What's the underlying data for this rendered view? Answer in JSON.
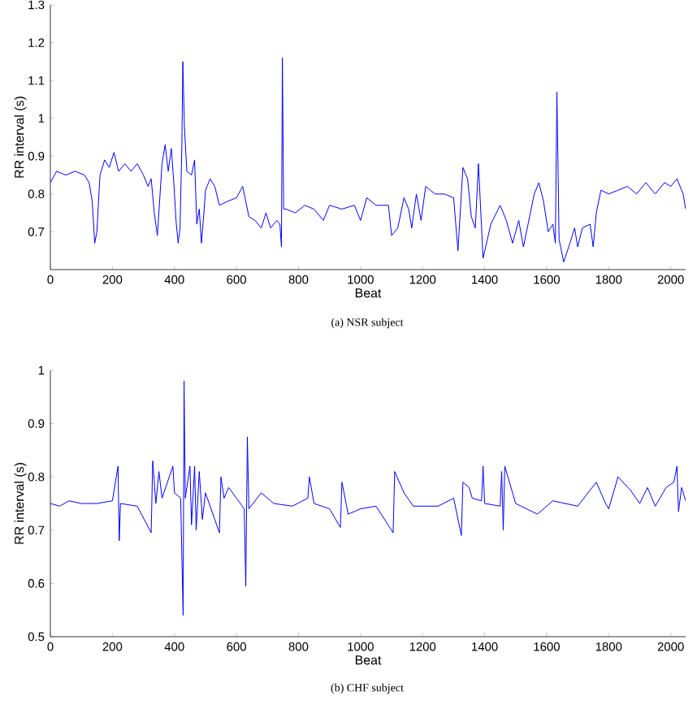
{
  "chart_data": [
    {
      "type": "line",
      "xlabel": "Beat",
      "ylabel": "RR interval (s)",
      "color": "#0000ff",
      "xlim": [
        0,
        2048
      ],
      "ylim": [
        0.6,
        1.3
      ],
      "xticks": [
        0,
        200,
        400,
        600,
        800,
        1000,
        1200,
        1400,
        1600,
        1800,
        2000
      ],
      "yticks": [
        0.7,
        0.8,
        0.9,
        1,
        1.1,
        1.2,
        1.3
      ],
      "annotations": [
        "(a) NSR subject"
      ],
      "x": [
        0,
        20,
        50,
        80,
        110,
        125,
        135,
        143,
        150,
        160,
        175,
        190,
        205,
        220,
        240,
        260,
        280,
        300,
        315,
        325,
        335,
        345,
        360,
        370,
        380,
        390,
        398,
        405,
        412,
        418,
        424,
        427,
        432,
        440,
        455,
        465,
        472,
        480,
        487,
        495,
        500,
        515,
        530,
        545,
        570,
        600,
        620,
        640,
        660,
        680,
        695,
        710,
        730,
        740,
        745,
        748,
        752,
        760,
        790,
        820,
        850,
        880,
        900,
        940,
        980,
        1000,
        1020,
        1050,
        1090,
        1100,
        1120,
        1140,
        1155,
        1165,
        1180,
        1195,
        1210,
        1240,
        1270,
        1300,
        1314,
        1330,
        1345,
        1357,
        1370,
        1380,
        1395,
        1420,
        1450,
        1470,
        1490,
        1510,
        1525,
        1540,
        1560,
        1575,
        1590,
        1605,
        1620,
        1628,
        1633,
        1640,
        1655,
        1675,
        1690,
        1700,
        1715,
        1740,
        1750,
        1760,
        1775,
        1800,
        1830,
        1860,
        1890,
        1920,
        1950,
        1980,
        2000,
        2020,
        2040,
        2048
      ],
      "values": [
        0.83,
        0.86,
        0.85,
        0.86,
        0.85,
        0.83,
        0.78,
        0.67,
        0.7,
        0.85,
        0.89,
        0.87,
        0.91,
        0.86,
        0.88,
        0.86,
        0.88,
        0.85,
        0.82,
        0.84,
        0.75,
        0.69,
        0.88,
        0.93,
        0.86,
        0.92,
        0.83,
        0.73,
        0.67,
        0.71,
        0.93,
        1.15,
        0.98,
        0.86,
        0.85,
        0.89,
        0.72,
        0.76,
        0.67,
        0.75,
        0.81,
        0.84,
        0.82,
        0.77,
        0.78,
        0.79,
        0.82,
        0.74,
        0.73,
        0.71,
        0.75,
        0.71,
        0.73,
        0.72,
        0.66,
        1.16,
        0.76,
        0.76,
        0.75,
        0.77,
        0.76,
        0.73,
        0.77,
        0.76,
        0.77,
        0.73,
        0.79,
        0.77,
        0.77,
        0.69,
        0.71,
        0.79,
        0.76,
        0.71,
        0.8,
        0.73,
        0.82,
        0.8,
        0.8,
        0.79,
        0.65,
        0.87,
        0.84,
        0.74,
        0.71,
        0.88,
        0.63,
        0.72,
        0.77,
        0.73,
        0.67,
        0.73,
        0.66,
        0.72,
        0.8,
        0.83,
        0.78,
        0.7,
        0.72,
        0.67,
        1.07,
        0.68,
        0.62,
        0.67,
        0.71,
        0.66,
        0.71,
        0.72,
        0.66,
        0.75,
        0.81,
        0.8,
        0.81,
        0.82,
        0.8,
        0.83,
        0.8,
        0.83,
        0.82,
        0.84,
        0.8,
        0.76
      ]
    },
    {
      "type": "line",
      "xlabel": "Beat",
      "ylabel": "RR interval (s)",
      "color": "#0000ff",
      "xlim": [
        0,
        2048
      ],
      "ylim": [
        0.5,
        1
      ],
      "xticks": [
        0,
        200,
        400,
        600,
        800,
        1000,
        1200,
        1400,
        1600,
        1800,
        2000
      ],
      "yticks": [
        0.5,
        0.6,
        0.7,
        0.8,
        0.9,
        1
      ],
      "annotations": [
        "(b) CHF subject"
      ],
      "x": [
        0,
        30,
        60,
        100,
        150,
        200,
        218,
        222,
        226,
        280,
        325,
        330,
        340,
        350,
        360,
        395,
        400,
        420,
        428,
        431,
        435,
        450,
        455,
        465,
        470,
        480,
        490,
        500,
        545,
        550,
        560,
        575,
        600,
        625,
        630,
        635,
        640,
        680,
        720,
        780,
        830,
        835,
        850,
        900,
        935,
        940,
        960,
        1000,
        1050,
        1105,
        1110,
        1140,
        1170,
        1250,
        1300,
        1325,
        1330,
        1350,
        1360,
        1390,
        1395,
        1400,
        1450,
        1455,
        1460,
        1465,
        1500,
        1570,
        1620,
        1700,
        1760,
        1790,
        1800,
        1830,
        1870,
        1900,
        1925,
        1950,
        1985,
        2010,
        2020,
        2025,
        2035,
        2048
      ],
      "values": [
        0.75,
        0.745,
        0.755,
        0.75,
        0.75,
        0.755,
        0.82,
        0.68,
        0.75,
        0.745,
        0.695,
        0.83,
        0.75,
        0.81,
        0.76,
        0.82,
        0.77,
        0.76,
        0.54,
        0.98,
        0.76,
        0.82,
        0.71,
        0.82,
        0.7,
        0.81,
        0.72,
        0.77,
        0.695,
        0.8,
        0.76,
        0.78,
        0.76,
        0.74,
        0.595,
        0.875,
        0.74,
        0.77,
        0.75,
        0.745,
        0.76,
        0.8,
        0.75,
        0.74,
        0.705,
        0.79,
        0.73,
        0.74,
        0.745,
        0.695,
        0.81,
        0.77,
        0.745,
        0.745,
        0.76,
        0.69,
        0.79,
        0.78,
        0.76,
        0.755,
        0.82,
        0.75,
        0.745,
        0.81,
        0.7,
        0.82,
        0.75,
        0.73,
        0.755,
        0.745,
        0.79,
        0.75,
        0.74,
        0.8,
        0.775,
        0.75,
        0.78,
        0.745,
        0.78,
        0.79,
        0.82,
        0.735,
        0.78,
        0.755
      ]
    }
  ]
}
